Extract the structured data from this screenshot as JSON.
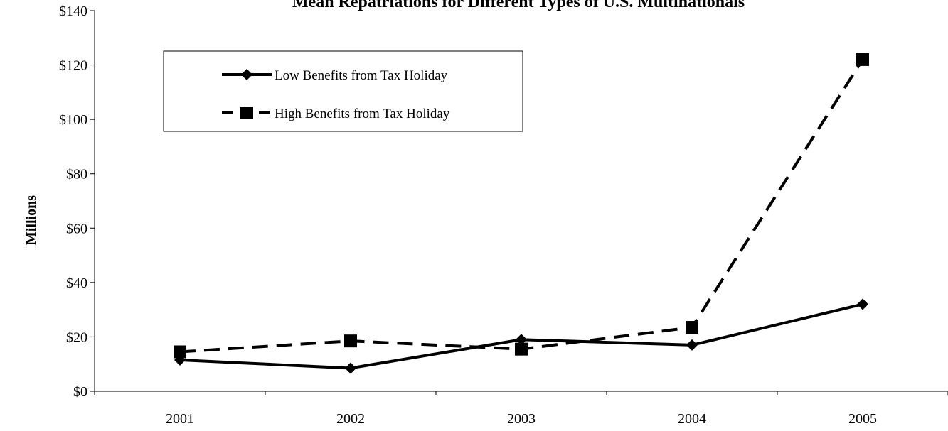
{
  "chart_data": {
    "type": "line",
    "title": "Mean Repatriations for Different Types of U.S. Multinationals",
    "xlabel": "",
    "ylabel": "Millions",
    "categories": [
      "2001",
      "2002",
      "2003",
      "2004",
      "2005"
    ],
    "ylim": [
      0,
      140
    ],
    "yticks": [
      0,
      20,
      40,
      60,
      80,
      100,
      120,
      140
    ],
    "ytick_labels": [
      "$0",
      "$20",
      "$40",
      "$60",
      "$80",
      "$100",
      "$120",
      "$140"
    ],
    "grid": false,
    "legend_position": "top-left",
    "series": [
      {
        "name": "Low Benefits from Tax Holiday",
        "values": [
          11.5,
          8.5,
          19,
          17,
          32
        ],
        "line_style": "solid",
        "marker": "diamond",
        "color": "#000000"
      },
      {
        "name": "High Benefits from Tax Holiday",
        "values": [
          14.5,
          18.5,
          15.5,
          23.5,
          122
        ],
        "line_style": "dashed",
        "marker": "square",
        "color": "#000000"
      }
    ]
  }
}
